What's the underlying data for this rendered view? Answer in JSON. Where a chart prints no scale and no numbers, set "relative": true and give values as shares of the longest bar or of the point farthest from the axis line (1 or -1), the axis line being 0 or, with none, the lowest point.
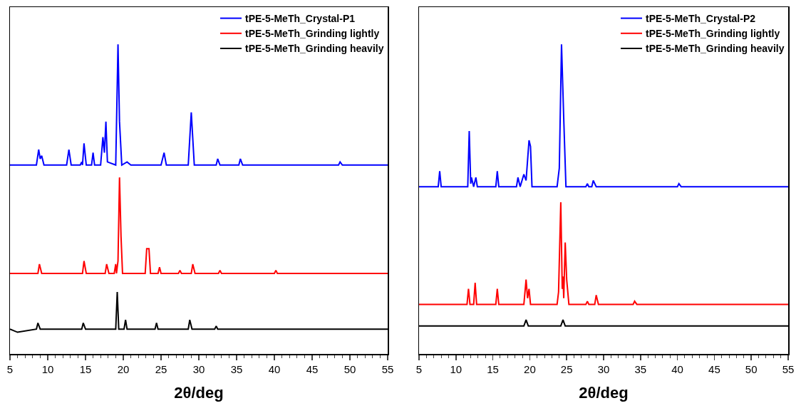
{
  "chart_data": [
    {
      "type": "line",
      "relative": true,
      "xlabel": "2θ/deg",
      "xlim": [
        5,
        55
      ],
      "xticks": [
        5,
        10,
        15,
        20,
        25,
        30,
        35,
        40,
        45,
        50,
        55
      ],
      "legend": "top right",
      "grid": false,
      "series": [
        {
          "name": "tPE-5-MeTh_Crystal-P1",
          "color": "#0000ff",
          "x": [
            5,
            8.5,
            8.8,
            9.0,
            9.2,
            9.5,
            12.5,
            12.8,
            13.1,
            14.3,
            14.5,
            14.6,
            14.8,
            15.1,
            15.8,
            16.0,
            16.2,
            17.0,
            17.3,
            17.5,
            17.7,
            17.9,
            19.0,
            19.3,
            19.5,
            19.8,
            20.5,
            21.0,
            25.0,
            25.4,
            25.7,
            28.6,
            29.0,
            29.4,
            32.3,
            32.5,
            32.8,
            35.3,
            35.5,
            35.8,
            48.5,
            48.7,
            49,
            55
          ],
          "values": [
            0.61,
            0.61,
            0.66,
            0.63,
            0.64,
            0.61,
            0.61,
            0.66,
            0.61,
            0.61,
            0.62,
            0.61,
            0.68,
            0.61,
            0.61,
            0.65,
            0.61,
            0.61,
            0.7,
            0.65,
            0.75,
            0.62,
            0.61,
            1.0,
            0.75,
            0.61,
            0.62,
            0.61,
            0.61,
            0.65,
            0.61,
            0.61,
            0.78,
            0.61,
            0.61,
            0.63,
            0.61,
            0.61,
            0.63,
            0.61,
            0.61,
            0.62,
            0.61,
            0.61
          ]
        },
        {
          "name": "tPE-5-MeTh_Grinding lightly",
          "color": "#ff0000",
          "x": [
            5,
            8.7,
            8.9,
            9.2,
            14.6,
            14.8,
            15.1,
            17.6,
            17.8,
            18.1,
            18.8,
            19.0,
            19.1,
            19.3,
            19.5,
            19.7,
            19.9,
            22.9,
            23.1,
            23.4,
            23.6,
            24.6,
            24.8,
            25.0,
            27.3,
            27.5,
            27.7,
            29.0,
            29.2,
            29.5,
            32.6,
            32.8,
            33.0,
            40.0,
            40.2,
            40.4,
            55
          ],
          "values": [
            0.26,
            0.26,
            0.29,
            0.26,
            0.26,
            0.3,
            0.26,
            0.26,
            0.29,
            0.26,
            0.26,
            0.29,
            0.26,
            0.3,
            0.57,
            0.38,
            0.26,
            0.26,
            0.34,
            0.34,
            0.26,
            0.26,
            0.28,
            0.26,
            0.26,
            0.27,
            0.26,
            0.26,
            0.29,
            0.26,
            0.26,
            0.27,
            0.26,
            0.26,
            0.27,
            0.26,
            0.26
          ]
        },
        {
          "name": "tPE-5-MeTh_Grinding heavily",
          "color": "#000000",
          "x": [
            5,
            6,
            8.5,
            8.7,
            9.0,
            14.5,
            14.7,
            15.0,
            19.0,
            19.2,
            19.4,
            20.1,
            20.3,
            20.5,
            24.2,
            24.4,
            24.6,
            28.6,
            28.8,
            29.1,
            32.1,
            32.3,
            32.5,
            55
          ],
          "values": [
            0.08,
            0.07,
            0.08,
            0.1,
            0.08,
            0.08,
            0.1,
            0.08,
            0.08,
            0.2,
            0.08,
            0.08,
            0.11,
            0.08,
            0.08,
            0.1,
            0.08,
            0.08,
            0.11,
            0.08,
            0.08,
            0.09,
            0.08,
            0.08
          ]
        }
      ]
    },
    {
      "type": "line",
      "relative": true,
      "xlabel": "2θ/deg",
      "xlim": [
        5,
        55
      ],
      "xticks": [
        5,
        10,
        15,
        20,
        25,
        30,
        35,
        40,
        45,
        50,
        55
      ],
      "legend": "top right",
      "grid": false,
      "series": [
        {
          "name": "tPE-5-MeTh_Crystal-P2",
          "color": "#0000ff",
          "x": [
            5,
            7.6,
            7.8,
            8.0,
            11.6,
            11.8,
            12.0,
            12.1,
            12.4,
            12.7,
            12.9,
            15.4,
            15.6,
            15.8,
            18.2,
            18.4,
            18.7,
            19.2,
            19.5,
            19.9,
            20.1,
            20.3,
            23.7,
            24.0,
            24.3,
            24.6,
            24.9,
            27.6,
            27.8,
            28.0,
            28.4,
            28.6,
            29.0,
            40.0,
            40.2,
            40.5,
            55
          ],
          "values": [
            0.54,
            0.54,
            0.59,
            0.54,
            0.54,
            0.72,
            0.55,
            0.57,
            0.54,
            0.57,
            0.54,
            0.54,
            0.59,
            0.54,
            0.54,
            0.57,
            0.54,
            0.58,
            0.56,
            0.69,
            0.67,
            0.54,
            0.54,
            0.6,
            1.0,
            0.76,
            0.54,
            0.54,
            0.55,
            0.54,
            0.54,
            0.56,
            0.54,
            0.54,
            0.55,
            0.54,
            0.54
          ]
        },
        {
          "name": "tPE-5-MeTh_Grinding lightly",
          "color": "#ff0000",
          "x": [
            5,
            11.5,
            11.7,
            11.9,
            12.4,
            12.6,
            12.8,
            15.4,
            15.6,
            15.8,
            19.2,
            19.5,
            19.7,
            19.9,
            20.1,
            23.7,
            23.9,
            24.2,
            24.4,
            24.5,
            24.6,
            24.8,
            25.0,
            25.3,
            27.6,
            27.8,
            28.0,
            28.8,
            29.0,
            29.3,
            34.0,
            34.2,
            34.5,
            55
          ],
          "values": [
            0.16,
            0.16,
            0.21,
            0.16,
            0.16,
            0.23,
            0.16,
            0.16,
            0.21,
            0.16,
            0.16,
            0.24,
            0.18,
            0.21,
            0.16,
            0.16,
            0.2,
            0.49,
            0.21,
            0.25,
            0.18,
            0.36,
            0.24,
            0.16,
            0.16,
            0.17,
            0.16,
            0.16,
            0.19,
            0.16,
            0.16,
            0.17,
            0.16,
            0.16
          ]
        },
        {
          "name": "tPE-5-MeTh_Grinding heavily",
          "color": "#000000",
          "x": [
            5,
            19.2,
            19.5,
            19.8,
            24.2,
            24.5,
            24.8,
            55
          ],
          "values": [
            0.09,
            0.09,
            0.11,
            0.09,
            0.09,
            0.11,
            0.09,
            0.09
          ]
        }
      ]
    }
  ]
}
